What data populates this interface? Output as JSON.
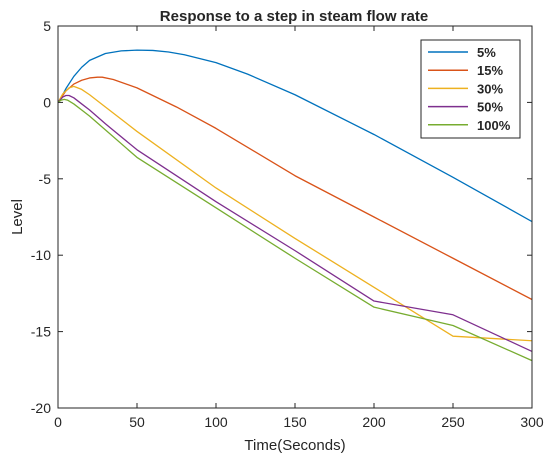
{
  "chart_data": {
    "type": "line",
    "title": "Response to a step in steam flow rate",
    "xlabel": "Time(Seconds)",
    "ylabel": "Level",
    "xlim": [
      0,
      300
    ],
    "ylim": [
      -20,
      5
    ],
    "xticks": [
      0,
      50,
      100,
      150,
      200,
      250,
      300
    ],
    "yticks": [
      -20,
      -15,
      -10,
      -5,
      0,
      5
    ],
    "grid": false,
    "legend_position": "top-right",
    "series": [
      {
        "name": "5%",
        "color": "#0072BD",
        "x": [
          0,
          2,
          5,
          10,
          15,
          20,
          30,
          40,
          50,
          60,
          70,
          80,
          100,
          120,
          150,
          200,
          250,
          300
        ],
        "y": [
          0,
          0.3,
          0.9,
          1.7,
          2.3,
          2.75,
          3.2,
          3.37,
          3.42,
          3.4,
          3.3,
          3.12,
          2.6,
          1.85,
          0.5,
          -2.1,
          -4.9,
          -7.8
        ]
      },
      {
        "name": "15%",
        "color": "#D95319",
        "x": [
          0,
          2,
          5,
          10,
          15,
          20,
          25,
          28,
          35,
          50,
          75,
          100,
          150,
          200,
          250,
          300
        ],
        "y": [
          0,
          0.3,
          0.75,
          1.2,
          1.45,
          1.6,
          1.65,
          1.65,
          1.5,
          0.95,
          -0.3,
          -1.7,
          -4.8,
          -7.5,
          -10.2,
          -12.9
        ]
      },
      {
        "name": "30%",
        "color": "#EDB120",
        "x": [
          0,
          3,
          7,
          10,
          15,
          20,
          30,
          50,
          100,
          150,
          200,
          250,
          300
        ],
        "y": [
          0,
          0.55,
          0.95,
          1.05,
          0.85,
          0.5,
          -0.3,
          -1.9,
          -5.6,
          -8.9,
          -12.1,
          -15.3,
          -15.6
        ]
      },
      {
        "name": "50%",
        "color": "#7E2F8E",
        "x": [
          0,
          3,
          5,
          7,
          10,
          15,
          20,
          30,
          50,
          100,
          150,
          200,
          250,
          300
        ],
        "y": [
          0,
          0.35,
          0.45,
          0.45,
          0.3,
          -0.1,
          -0.5,
          -1.4,
          -3.1,
          -6.5,
          -9.7,
          -13.0,
          -13.9,
          -16.3
        ]
      },
      {
        "name": "100%",
        "color": "#77AC30",
        "x": [
          0,
          2,
          4,
          6,
          10,
          15,
          20,
          30,
          50,
          100,
          150,
          200,
          250,
          300
        ],
        "y": [
          0,
          0.15,
          0.2,
          0.15,
          -0.1,
          -0.5,
          -0.9,
          -1.8,
          -3.6,
          -6.9,
          -10.2,
          -13.4,
          -14.6,
          -16.9
        ]
      }
    ]
  }
}
